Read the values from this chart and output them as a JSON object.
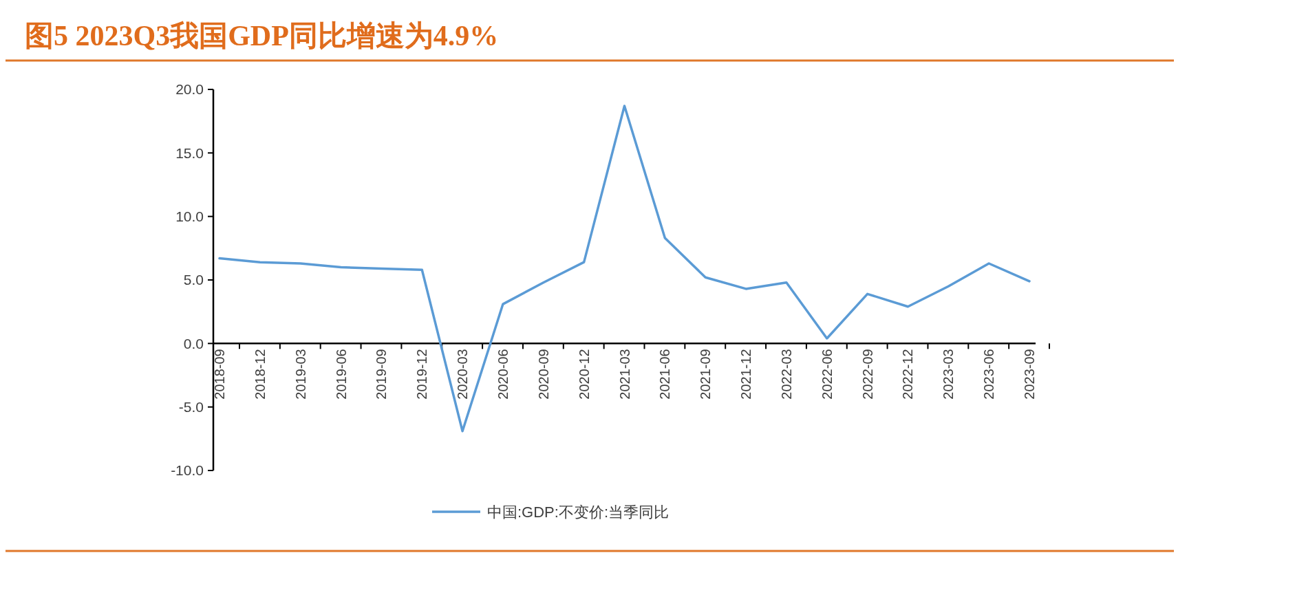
{
  "chart_data": {
    "type": "line",
    "title": "图5 2023Q3我国GDP同比增速为4.9%",
    "categories": [
      "2018-09",
      "2018-12",
      "2019-03",
      "2019-06",
      "2019-09",
      "2019-12",
      "2020-03",
      "2020-06",
      "2020-09",
      "2020-12",
      "2021-03",
      "2021-06",
      "2021-09",
      "2021-12",
      "2022-03",
      "2022-06",
      "2022-09",
      "2022-12",
      "2023-03",
      "2023-06",
      "2023-09"
    ],
    "series": [
      {
        "name": "中国:GDP:不变价:当季同比",
        "color": "#5b9bd5",
        "values": [
          6.7,
          6.4,
          6.3,
          6.0,
          5.9,
          5.8,
          -6.9,
          3.1,
          4.8,
          6.4,
          18.7,
          8.3,
          5.2,
          4.3,
          4.8,
          0.4,
          3.9,
          2.9,
          4.5,
          6.3,
          4.9
        ]
      }
    ],
    "ylim": [
      -10,
      20
    ],
    "yticks": [
      {
        "value": -10,
        "label": "-10.0"
      },
      {
        "value": -5,
        "label": "-5.0"
      },
      {
        "value": 0,
        "label": "0.0"
      },
      {
        "value": 5,
        "label": "5.0"
      },
      {
        "value": 10,
        "label": "10.0"
      },
      {
        "value": 15,
        "label": "15.0"
      },
      {
        "value": 20,
        "label": "20.0"
      }
    ],
    "legend": "bottom",
    "marker": "none",
    "line_style": "solid"
  }
}
